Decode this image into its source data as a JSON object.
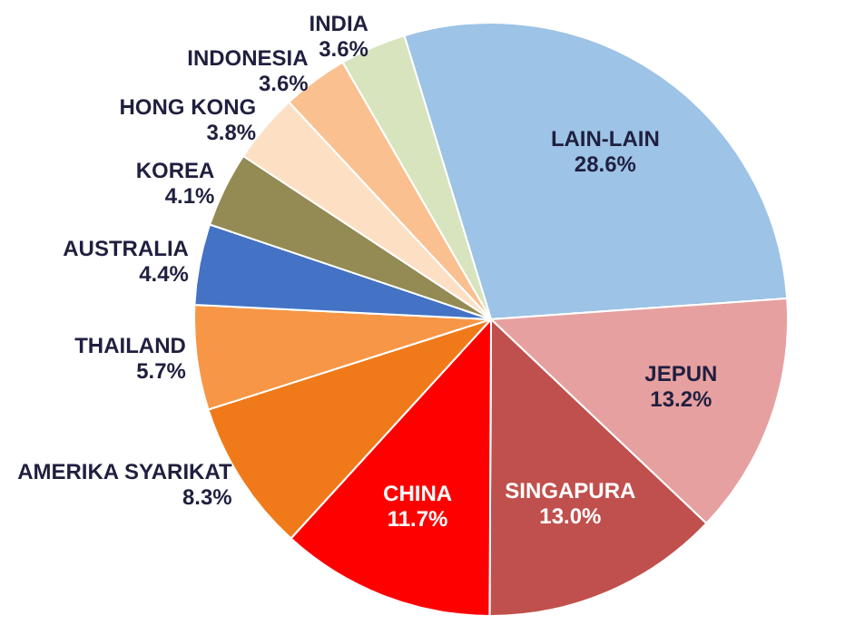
{
  "chart_data": {
    "type": "pie",
    "categories": [
      "LAIN-LAIN",
      "JEPUN",
      "SINGAPURA",
      "CHINA",
      "AMERIKA SYARIKAT",
      "THAILAND",
      "AUSTRALIA",
      "KOREA",
      "HONG KONG",
      "INDONESIA",
      "INDIA"
    ],
    "values": [
      28.6,
      13.2,
      13.0,
      11.7,
      8.3,
      5.7,
      4.4,
      4.1,
      3.8,
      3.6,
      3.6
    ],
    "value_labels": [
      "28.6%",
      "13.2%",
      "13.0%",
      "11.7%",
      "8.3%",
      "5.7%",
      "4.4%",
      "4.1%",
      "3.8%",
      "3.6%",
      "3.6%"
    ],
    "colors": [
      "#9dc3e6",
      "#e6a0a0",
      "#c0504d",
      "#ff0000",
      "#f07a1a",
      "#f79646",
      "#4472c4",
      "#948a54",
      "#fde0c4",
      "#fac090",
      "#d7e4bd"
    ],
    "legend": false
  }
}
